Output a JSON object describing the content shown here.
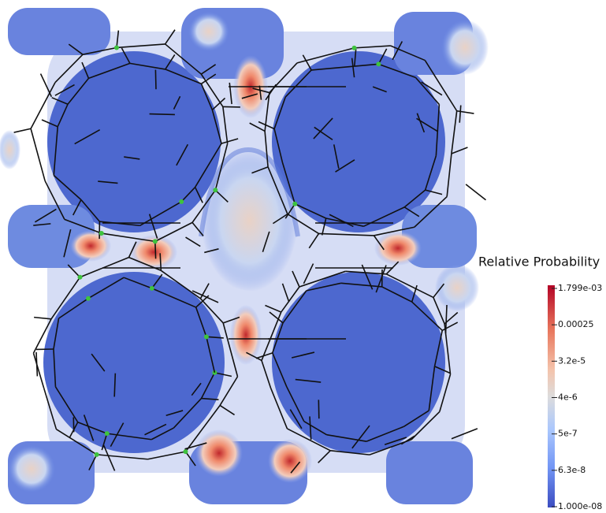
{
  "colorbar": {
    "title": "Relative Probability",
    "labels": [
      "1.799e-03",
      "0.00025",
      "3.2e-5",
      "4e-6",
      "5e-7",
      "6.3e-8",
      "1.000e-08"
    ]
  }
}
